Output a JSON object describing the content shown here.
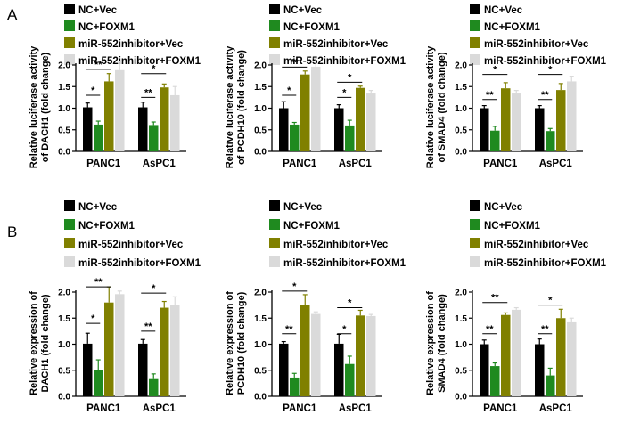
{
  "panels": [
    "A",
    "B"
  ],
  "colors": {
    "NC+Vec": "#000000",
    "NC+FOXM1": "#1f8a1f",
    "miR-552inhibitor+Vec": "#808000",
    "miR-552inhibitor+FOXM1": "#dadada"
  },
  "chart_data": [
    {
      "type": "bar",
      "panel": "A",
      "ylabel": [
        "Relative luciferase activity",
        "of DACH1 (fold change)"
      ],
      "categories": [
        "PANC1",
        "AsPC1"
      ],
      "ylim": [
        0,
        2.0
      ],
      "yticks": [
        "0.0",
        "0.5",
        "1.0",
        "1.5",
        "2.0"
      ],
      "series": [
        {
          "name": "NC+Vec",
          "values": [
            1.02,
            1.02
          ],
          "errors": [
            0.1,
            0.12
          ]
        },
        {
          "name": "NC+FOXM1",
          "values": [
            0.62,
            0.61
          ],
          "errors": [
            0.08,
            0.07
          ]
        },
        {
          "name": "miR-552inhibitor+Vec",
          "values": [
            1.62,
            1.48
          ],
          "errors": [
            0.18,
            0.08
          ]
        },
        {
          "name": "miR-552inhibitor+FOXM1",
          "values": [
            1.88,
            1.3
          ],
          "errors": [
            0.2,
            0.2
          ]
        }
      ],
      "annotations": [
        {
          "cat": 0,
          "from": 0,
          "to": 1,
          "text": "*",
          "level": 1.3
        },
        {
          "cat": 0,
          "from": 0,
          "to": 2,
          "text": "**",
          "level": 1.9
        },
        {
          "cat": 1,
          "from": 0,
          "to": 1,
          "text": "**",
          "level": 1.25
        },
        {
          "cat": 1,
          "from": 0,
          "to": 2,
          "text": "*",
          "level": 1.8
        }
      ]
    },
    {
      "type": "bar",
      "panel": "A",
      "ylabel": [
        "Relative luciferase activity",
        "of PCDH10 (fold change)"
      ],
      "categories": [
        "PANC1",
        "AsPC1"
      ],
      "ylim": [
        0,
        2.0
      ],
      "yticks": [
        "0.0",
        "0.5",
        "1.0",
        "1.5",
        "2.0"
      ],
      "series": [
        {
          "name": "NC+Vec",
          "values": [
            1.0,
            1.0
          ],
          "errors": [
            0.15,
            0.08
          ]
        },
        {
          "name": "NC+FOXM1",
          "values": [
            0.62,
            0.6
          ],
          "errors": [
            0.05,
            0.12
          ]
        },
        {
          "name": "miR-552inhibitor+Vec",
          "values": [
            1.78,
            1.47
          ],
          "errors": [
            0.08,
            0.04
          ]
        },
        {
          "name": "miR-552inhibitor+FOXM1",
          "values": [
            1.96,
            1.36
          ],
          "errors": [
            0.2,
            0.05
          ]
        }
      ],
      "annotations": [
        {
          "cat": 0,
          "from": 0,
          "to": 1,
          "text": "*",
          "level": 1.3
        },
        {
          "cat": 0,
          "from": 0,
          "to": 2,
          "text": "**",
          "level": 1.95
        },
        {
          "cat": 1,
          "from": 0,
          "to": 1,
          "text": "*",
          "level": 1.25
        },
        {
          "cat": 1,
          "from": 0,
          "to": 2,
          "text": "*",
          "level": 1.6
        }
      ]
    },
    {
      "type": "bar",
      "panel": "A",
      "ylabel": [
        "Relative luciferase activity",
        "of SMAD4 (fold change)"
      ],
      "categories": [
        "PANC1",
        "AsPC1"
      ],
      "ylim": [
        0,
        2.0
      ],
      "yticks": [
        "0.0",
        "0.5",
        "1.0",
        "1.5",
        "2.0"
      ],
      "series": [
        {
          "name": "NC+Vec",
          "values": [
            1.0,
            1.0
          ],
          "errors": [
            0.06,
            0.06
          ]
        },
        {
          "name": "NC+FOXM1",
          "values": [
            0.48,
            0.47
          ],
          "errors": [
            0.1,
            0.06
          ]
        },
        {
          "name": "miR-552inhibitor+Vec",
          "values": [
            1.46,
            1.42
          ],
          "errors": [
            0.13,
            0.15
          ]
        },
        {
          "name": "miR-552inhibitor+FOXM1",
          "values": [
            1.36,
            1.62
          ],
          "errors": [
            0.05,
            0.12
          ]
        }
      ],
      "annotations": [
        {
          "cat": 0,
          "from": 0,
          "to": 1,
          "text": "**",
          "level": 1.2
        },
        {
          "cat": 0,
          "from": 0,
          "to": 2,
          "text": "*",
          "level": 1.78
        },
        {
          "cat": 1,
          "from": 0,
          "to": 1,
          "text": "**",
          "level": 1.2
        },
        {
          "cat": 1,
          "from": 0,
          "to": 2,
          "text": "*",
          "level": 1.78
        }
      ]
    },
    {
      "type": "bar",
      "panel": "B",
      "ylabel": [
        "Relative expression of",
        "DACH1 (fold change)"
      ],
      "categories": [
        "PANC1",
        "AsPC1"
      ],
      "ylim": [
        0,
        2.0
      ],
      "yticks": [
        "0.0",
        "0.5",
        "1.0",
        "1.5",
        "2.0"
      ],
      "series": [
        {
          "name": "NC+Vec",
          "values": [
            1.01,
            1.01
          ],
          "errors": [
            0.2,
            0.08
          ]
        },
        {
          "name": "NC+FOXM1",
          "values": [
            0.5,
            0.33
          ],
          "errors": [
            0.2,
            0.1
          ]
        },
        {
          "name": "miR-552inhibitor+Vec",
          "values": [
            1.8,
            1.7
          ],
          "errors": [
            0.3,
            0.12
          ]
        },
        {
          "name": "miR-552inhibitor+FOXM1",
          "values": [
            1.96,
            1.76
          ],
          "errors": [
            0.06,
            0.15
          ]
        }
      ],
      "annotations": [
        {
          "cat": 0,
          "from": 0,
          "to": 1,
          "text": "*",
          "level": 1.4
        },
        {
          "cat": 0,
          "from": 0,
          "to": 2,
          "text": "**",
          "level": 2.1
        },
        {
          "cat": 1,
          "from": 0,
          "to": 1,
          "text": "**",
          "level": 1.25
        },
        {
          "cat": 1,
          "from": 0,
          "to": 2,
          "text": "*",
          "level": 1.98
        }
      ]
    },
    {
      "type": "bar",
      "panel": "B",
      "ylabel": [
        "Relative expression of",
        "PCDH10 (fold change)"
      ],
      "categories": [
        "PANC1",
        "AsPC1"
      ],
      "ylim": [
        0,
        2.0
      ],
      "yticks": [
        "0.0",
        "0.5",
        "1.0",
        "1.5",
        "2.0"
      ],
      "series": [
        {
          "name": "NC+Vec",
          "values": [
            1.01,
            1.01
          ],
          "errors": [
            0.04,
            0.18
          ]
        },
        {
          "name": "NC+FOXM1",
          "values": [
            0.36,
            0.62
          ],
          "errors": [
            0.08,
            0.15
          ]
        },
        {
          "name": "miR-552inhibitor+Vec",
          "values": [
            1.75,
            1.55
          ],
          "errors": [
            0.2,
            0.1
          ]
        },
        {
          "name": "miR-552inhibitor+FOXM1",
          "values": [
            1.58,
            1.54
          ],
          "errors": [
            0.04,
            0.03
          ]
        }
      ],
      "annotations": [
        {
          "cat": 0,
          "from": 0,
          "to": 1,
          "text": "**",
          "level": 1.2
        },
        {
          "cat": 0,
          "from": 0,
          "to": 2,
          "text": "*",
          "level": 2.02
        },
        {
          "cat": 1,
          "from": 0,
          "to": 1,
          "text": "*",
          "level": 1.2
        },
        {
          "cat": 1,
          "from": 0,
          "to": 2,
          "text": "*",
          "level": 1.7
        }
      ]
    },
    {
      "type": "bar",
      "panel": "B",
      "ylabel": [
        "Relative expression of",
        "SMAD4 (fold change)"
      ],
      "categories": [
        "PANC1",
        "AsPC1"
      ],
      "ylim": [
        0,
        2.0
      ],
      "yticks": [
        "0.0",
        "0.5",
        "1.0",
        "1.5",
        "2.0"
      ],
      "series": [
        {
          "name": "NC+Vec",
          "values": [
            1.0,
            1.0
          ],
          "errors": [
            0.08,
            0.1
          ]
        },
        {
          "name": "NC+FOXM1",
          "values": [
            0.58,
            0.4
          ],
          "errors": [
            0.06,
            0.14
          ]
        },
        {
          "name": "miR-552inhibitor+Vec",
          "values": [
            1.56,
            1.5
          ],
          "errors": [
            0.04,
            0.17
          ]
        },
        {
          "name": "miR-552inhibitor+FOXM1",
          "values": [
            1.66,
            1.42
          ],
          "errors": [
            0.04,
            0.08
          ]
        }
      ],
      "annotations": [
        {
          "cat": 0,
          "from": 0,
          "to": 1,
          "text": "**",
          "level": 1.2
        },
        {
          "cat": 0,
          "from": 0,
          "to": 2,
          "text": "**",
          "level": 1.8
        },
        {
          "cat": 1,
          "from": 0,
          "to": 1,
          "text": "**",
          "level": 1.2
        },
        {
          "cat": 1,
          "from": 0,
          "to": 2,
          "text": "*",
          "level": 1.75
        }
      ]
    }
  ]
}
